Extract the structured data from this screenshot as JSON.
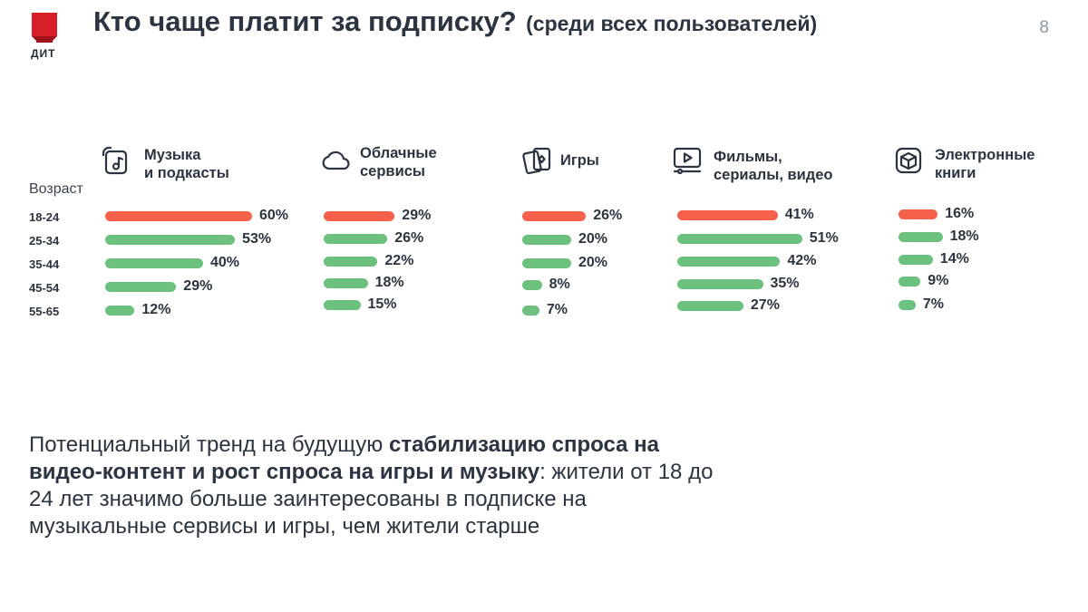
{
  "brand": {
    "logo_text": "ДИТ",
    "accent": "#d81e26"
  },
  "header": {
    "title": "Кто чаще платит за подписку?",
    "subtitle": "(среди всех пользователей)",
    "page_number": "8"
  },
  "colors": {
    "highlight": "#f5614a",
    "normal": "#6cc17e"
  },
  "chart_data": {
    "type": "bar",
    "orientation": "horizontal",
    "row_header": "Возраст",
    "categories": [
      "18-24",
      "25-34",
      "35-44",
      "45-54",
      "55-65"
    ],
    "unit": "%",
    "highlight_row": 0,
    "series": [
      {
        "name": "Музыка и подкасты",
        "label_lines": [
          "Музыка",
          "и подкасты"
        ],
        "icon": "music-icon",
        "values": [
          60,
          53,
          40,
          29,
          12
        ]
      },
      {
        "name": "Облачные сервисы",
        "label_lines": [
          "Облачные",
          "сервисы"
        ],
        "icon": "cloud-icon",
        "values": [
          29,
          26,
          22,
          18,
          15
        ]
      },
      {
        "name": "Игры",
        "label_lines": [
          "Игры"
        ],
        "icon": "game-cards-icon",
        "values": [
          26,
          20,
          20,
          8,
          7
        ]
      },
      {
        "name": "Фильмы, сериалы, видео",
        "label_lines": [
          "Фильмы,",
          "сериалы, видео"
        ],
        "icon": "video-player-icon",
        "values": [
          41,
          51,
          42,
          35,
          27
        ]
      },
      {
        "name": "Электронные книги",
        "label_lines": [
          "Электронные",
          "книги"
        ],
        "icon": "book-cube-icon",
        "values": [
          16,
          18,
          14,
          9,
          7
        ]
      }
    ]
  },
  "note": {
    "p1": "Потенциальный тренд на будущую ",
    "b1": "стабилизацию спроса на видео-контент и рост спроса на игры и музыку",
    "p2": ": жители от 18 до 24 лет значимо больше заинтересованы в подписке на музыкальные сервисы и игры, чем жители старше"
  }
}
